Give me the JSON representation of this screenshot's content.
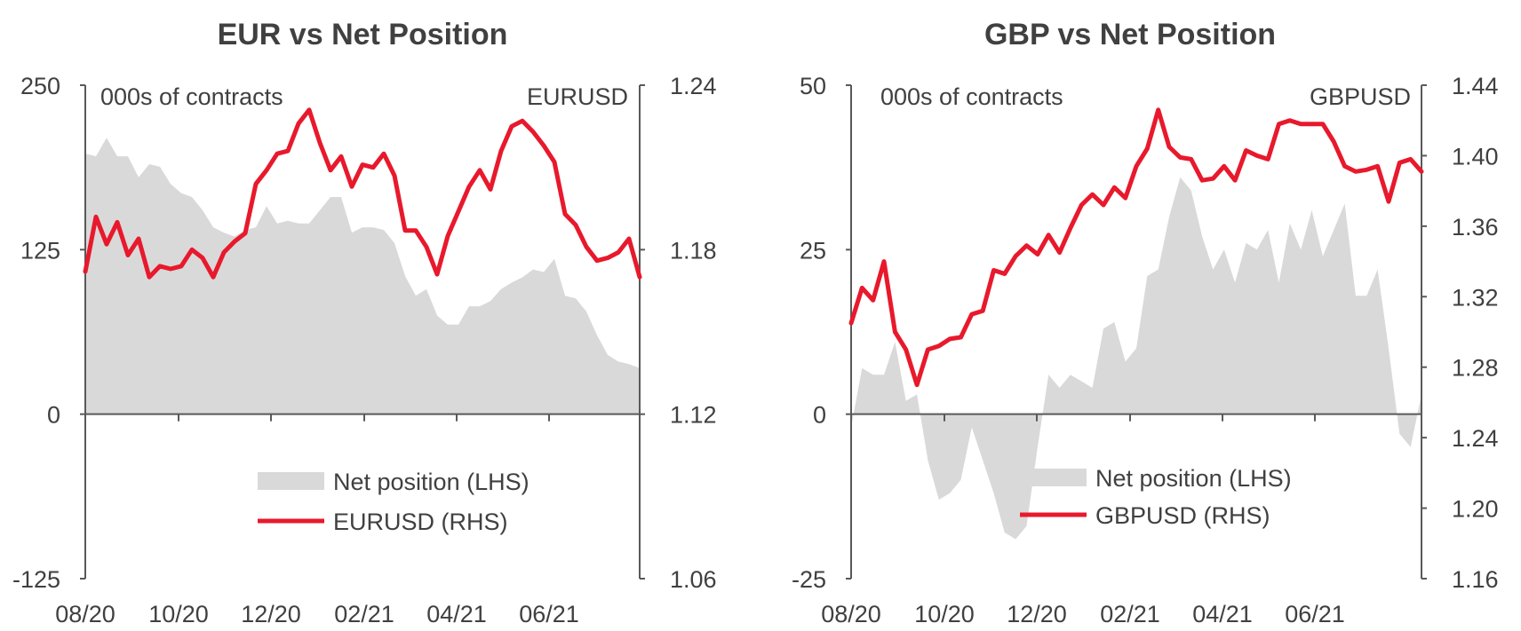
{
  "chart_data": [
    {
      "type": "area+line",
      "title": "EUR vs Net Position",
      "left_axis_label": "000s of contracts",
      "right_axis_label": "EURUSD",
      "left_ylim": [
        -125,
        250
      ],
      "left_ticks": [
        "250",
        "125",
        "0",
        "-125"
      ],
      "right_ylim": [
        1.06,
        1.24
      ],
      "right_ticks": [
        "1.24",
        "1.18",
        "1.12",
        "1.06"
      ],
      "x_tick_labels": [
        "08/20",
        "10/20",
        "12/20",
        "02/21",
        "04/21",
        "06/21"
      ],
      "x_range": [
        "08/20",
        "08/21"
      ],
      "grid": false,
      "legend_position": "bottom-right",
      "series": [
        {
          "name": "Net position (LHS)",
          "kind": "area",
          "axis": "left",
          "color": "#d9d9d9",
          "values": [
            198,
            196,
            210,
            196,
            196,
            180,
            190,
            188,
            175,
            168,
            165,
            155,
            142,
            138,
            135,
            140,
            142,
            158,
            145,
            147,
            145,
            145,
            155,
            165,
            165,
            138,
            142,
            142,
            140,
            130,
            105,
            90,
            95,
            75,
            68,
            68,
            82,
            82,
            86,
            95,
            100,
            104,
            110,
            108,
            118,
            90,
            88,
            78,
            60,
            45,
            40,
            38,
            35
          ]
        },
        {
          "name": "EURUSD (RHS)",
          "kind": "line",
          "axis": "right",
          "color": "#e8192c",
          "values": [
            1.172,
            1.192,
            1.182,
            1.19,
            1.178,
            1.184,
            1.17,
            1.174,
            1.173,
            1.174,
            1.18,
            1.177,
            1.17,
            1.179,
            1.183,
            1.186,
            1.204,
            1.209,
            1.215,
            1.216,
            1.226,
            1.231,
            1.219,
            1.209,
            1.214,
            1.203,
            1.211,
            1.21,
            1.215,
            1.207,
            1.187,
            1.187,
            1.181,
            1.171,
            1.185,
            1.194,
            1.203,
            1.209,
            1.202,
            1.216,
            1.225,
            1.227,
            1.223,
            1.218,
            1.212,
            1.193,
            1.189,
            1.181,
            1.176,
            1.177,
            1.179,
            1.184,
            1.17
          ]
        }
      ]
    },
    {
      "type": "area+line",
      "title": "GBP vs Net Position",
      "left_axis_label": "000s of contracts",
      "right_axis_label": "GBPUSD",
      "left_ylim": [
        -25,
        50
      ],
      "left_ticks": [
        "50",
        "25",
        "0",
        "-25"
      ],
      "right_ylim": [
        1.16,
        1.44
      ],
      "right_ticks": [
        "1.44",
        "1.40",
        "1.36",
        "1.32",
        "1.28",
        "1.24",
        "1.20",
        "1.16"
      ],
      "x_tick_labels": [
        "08/20",
        "10/20",
        "12/20",
        "02/21",
        "04/21",
        "06/21"
      ],
      "x_range": [
        "08/20",
        "08/21"
      ],
      "grid": false,
      "legend_position": "bottom-right",
      "series": [
        {
          "name": "Net position (LHS)",
          "kind": "area",
          "axis": "left",
          "color": "#d9d9d9",
          "values": [
            -2,
            7,
            6,
            6,
            11,
            2,
            3,
            -7,
            -13,
            -12,
            -10,
            -2,
            -7,
            -12,
            -18,
            -19,
            -17,
            -5,
            6,
            4,
            6,
            5,
            4,
            13,
            14,
            8,
            10,
            21,
            22,
            30,
            36,
            34,
            27,
            22,
            25,
            20,
            26,
            25,
            28,
            20,
            29,
            25,
            31,
            24,
            28,
            32,
            18,
            18,
            22,
            10,
            -3,
            -5,
            3
          ]
        },
        {
          "name": "GBPUSD (RHS)",
          "kind": "line",
          "axis": "right",
          "color": "#e8192c",
          "values": [
            1.305,
            1.325,
            1.318,
            1.34,
            1.3,
            1.29,
            1.27,
            1.29,
            1.292,
            1.296,
            1.297,
            1.31,
            1.312,
            1.335,
            1.333,
            1.343,
            1.349,
            1.344,
            1.355,
            1.345,
            1.359,
            1.372,
            1.378,
            1.372,
            1.382,
            1.376,
            1.394,
            1.404,
            1.426,
            1.405,
            1.399,
            1.398,
            1.386,
            1.387,
            1.394,
            1.386,
            1.403,
            1.4,
            1.398,
            1.418,
            1.42,
            1.418,
            1.418,
            1.418,
            1.408,
            1.394,
            1.391,
            1.392,
            1.394,
            1.374,
            1.396,
            1.398,
            1.391
          ]
        }
      ]
    }
  ]
}
